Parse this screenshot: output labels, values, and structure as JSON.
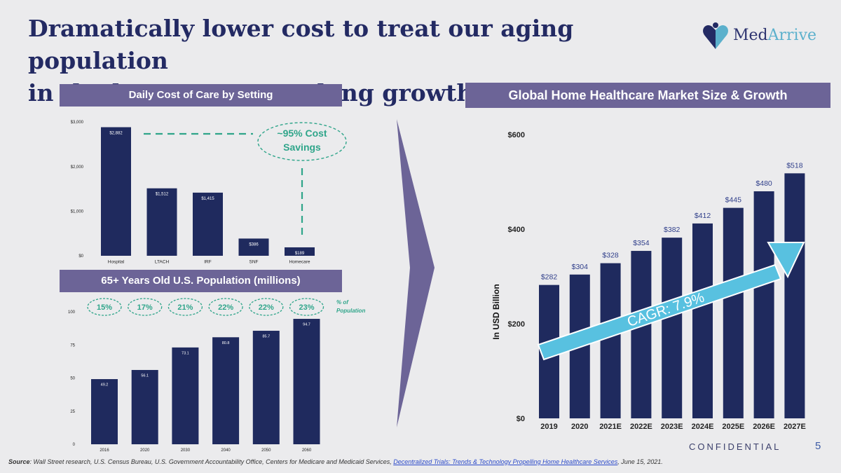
{
  "title": {
    "line1": "Dramatically lower cost to treat our aging population",
    "line2": "in the home creates a long growth runway..."
  },
  "logo": {
    "part1": "Med",
    "part2": "Arrive",
    "icon": "heart-logo-icon"
  },
  "colors": {
    "navy": "#232a63",
    "bar": "#1f2a5e",
    "banner": "#6c6497",
    "teal": "#2fa58a",
    "arrow": "#58c1e0"
  },
  "chart_data": [
    {
      "type": "bar",
      "title": "Daily Cost of Care by Setting",
      "categories": [
        "Hospital",
        "LTACH",
        "IRF",
        "SNF",
        "Homecare"
      ],
      "values": [
        2882,
        1512,
        1415,
        386,
        189
      ],
      "data_labels": [
        "$2,882",
        "$1,512",
        "$1,415",
        "$386",
        "$189"
      ],
      "yticks": [
        0,
        1000,
        2000,
        3000
      ],
      "ytick_labels": [
        "$0",
        "$1,000",
        "$2,000",
        "$3,000"
      ],
      "ylim": [
        0,
        3000
      ],
      "annotation": {
        "line1": "~95% Cost",
        "line2": "Savings"
      }
    },
    {
      "type": "bar",
      "title": "65+ Years Old U.S. Population (millions)",
      "categories": [
        "2016",
        "2020",
        "2030",
        "2040",
        "2050",
        "2060"
      ],
      "values": [
        49.2,
        56.1,
        73.1,
        80.8,
        85.7,
        94.7
      ],
      "data_labels": [
        "49.2",
        "56.1",
        "73.1",
        "80.8",
        "85.7",
        "94.7"
      ],
      "percent_of_population": [
        "15%",
        "17%",
        "21%",
        "22%",
        "22%",
        "23%"
      ],
      "percent_legend": {
        "line1": "% of",
        "line2": "Population"
      },
      "yticks": [
        0,
        25,
        50,
        75,
        100
      ],
      "ytick_labels": [
        "0",
        "25",
        "50",
        "75",
        "100"
      ],
      "ylim": [
        0,
        100
      ]
    },
    {
      "type": "bar",
      "title": "Global Home Healthcare Market Size & Growth",
      "categories": [
        "2019",
        "2020",
        "2021E",
        "2022E",
        "2023E",
        "2024E",
        "2025E",
        "2026E",
        "2027E"
      ],
      "values": [
        282,
        304,
        328,
        354,
        382,
        412,
        445,
        480,
        518
      ],
      "data_labels": [
        "$282",
        "$304",
        "$328",
        "$354",
        "$382",
        "$412",
        "$445",
        "$480",
        "$518"
      ],
      "yticks": [
        0,
        200,
        400,
        600
      ],
      "ytick_labels": [
        "$0",
        "$200",
        "$400",
        "$600"
      ],
      "ylim": [
        0,
        600
      ],
      "ylabel": "In USD Billion",
      "annotation": "CAGR: 7.9%"
    }
  ],
  "footer": {
    "source_label": "Source",
    "source_text": ": Wall Street research, U.S. Census Bureau, U.S. Government Accountability Office, Centers for Medicare and Medicaid Services, ",
    "source_link": "Decentralized Trials: Trends & Technology Propelling Home Healthcare Services",
    "source_date": ", June 15, 2021.",
    "confidential": "CONFIDENTIAL",
    "page_number": "5"
  }
}
